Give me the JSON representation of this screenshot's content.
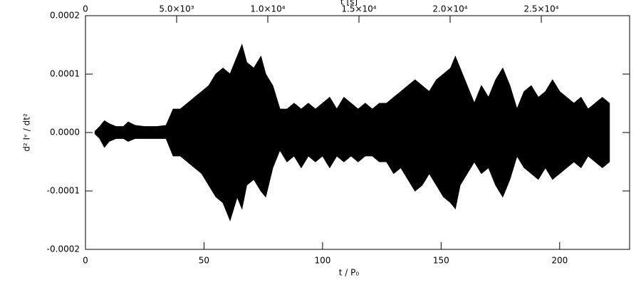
{
  "chart_data": {
    "type": "band",
    "xlabel": "t / P₀",
    "x2label": "t [s]",
    "ylabel": "d² Iᵛ / dt²",
    "color": "#000000",
    "x": [
      4,
      6,
      8,
      10,
      13,
      16,
      18,
      21,
      25,
      30,
      34,
      37,
      40,
      43,
      46,
      49,
      52,
      55,
      58,
      61,
      64,
      66,
      68,
      71,
      74,
      76,
      79,
      82,
      85,
      88,
      91,
      94,
      97,
      100,
      103,
      106,
      109,
      112,
      115,
      118,
      121,
      124,
      127,
      130,
      133,
      136,
      139,
      142,
      145,
      148,
      151,
      154,
      156,
      158,
      161,
      164,
      167,
      170,
      173,
      176,
      179,
      182,
      185,
      188,
      191,
      194,
      197,
      200,
      203,
      206,
      209,
      212,
      215,
      218,
      221
    ],
    "upper": [
      2e-06,
      1e-05,
      2e-05,
      1.5e-05,
      1e-05,
      1e-05,
      1.8e-05,
      1.2e-05,
      1e-05,
      1e-05,
      1.2e-05,
      4e-05,
      4e-05,
      5e-05,
      6e-05,
      7e-05,
      8e-05,
      0.0001,
      0.00011,
      0.0001,
      0.00013,
      0.00015,
      0.00012,
      0.00011,
      0.00013,
      0.0001,
      8e-05,
      4e-05,
      4e-05,
      5e-05,
      4e-05,
      5e-05,
      4e-05,
      5e-05,
      6e-05,
      4e-05,
      6e-05,
      5e-05,
      4e-05,
      5e-05,
      4e-05,
      5e-05,
      5e-05,
      6e-05,
      7e-05,
      8e-05,
      9e-05,
      8e-05,
      7e-05,
      9e-05,
      0.0001,
      0.00011,
      0.00013,
      0.00011,
      8e-05,
      5e-05,
      8e-05,
      6e-05,
      9e-05,
      0.00011,
      8e-05,
      4e-05,
      7e-05,
      8e-05,
      6e-05,
      7e-05,
      9e-05,
      7e-05,
      6e-05,
      5e-05,
      6e-05,
      4e-05,
      5e-05,
      6e-05,
      5e-05
    ],
    "lower": [
      -2e-06,
      -1e-05,
      -2.5e-05,
      -1.5e-05,
      -1e-05,
      -1e-05,
      -1.5e-05,
      -1e-05,
      -1e-05,
      -1e-05,
      -1e-05,
      -4e-05,
      -4e-05,
      -5e-05,
      -6e-05,
      -7e-05,
      -9e-05,
      -0.00011,
      -0.00012,
      -0.00015,
      -0.00011,
      -0.00013,
      -9e-05,
      -8e-05,
      -0.0001,
      -0.00011,
      -6e-05,
      -3e-05,
      -5e-05,
      -4e-05,
      -6e-05,
      -4e-05,
      -5e-05,
      -4e-05,
      -6e-05,
      -4e-05,
      -5e-05,
      -4e-05,
      -5e-05,
      -4e-05,
      -4e-05,
      -5e-05,
      -5e-05,
      -7e-05,
      -6e-05,
      -8e-05,
      -0.0001,
      -9e-05,
      -7e-05,
      -9e-05,
      -0.00011,
      -0.00012,
      -0.00013,
      -9e-05,
      -7e-05,
      -5e-05,
      -7e-05,
      -6e-05,
      -9e-05,
      -0.00011,
      -8e-05,
      -4e-05,
      -6e-05,
      -7e-05,
      -8e-05,
      -6e-05,
      -8e-05,
      -7e-05,
      -6e-05,
      -5e-05,
      -6e-05,
      -4e-05,
      -5e-05,
      -6e-05,
      -5e-05
    ],
    "xlim": [
      0,
      229.5
    ],
    "xticks": [
      0,
      50,
      100,
      150,
      200
    ],
    "x2lim": [
      0,
      29844
    ],
    "x2ticks": [
      0,
      {
        "value": 5000,
        "label": "5.0×10³"
      },
      {
        "value": 10000,
        "label": "1.0×10⁴"
      },
      {
        "value": 15000,
        "label": "1.5×10⁴"
      },
      {
        "value": 20000,
        "label": "2.0×10⁴"
      },
      {
        "value": 25000,
        "label": "2.5×10⁴"
      }
    ],
    "ylim": [
      -0.0002,
      0.0002
    ],
    "yticks": [
      -0.0002,
      -0.0001,
      {
        "value": 0,
        "label": "0.0000"
      },
      0.0001,
      0.0002
    ]
  }
}
